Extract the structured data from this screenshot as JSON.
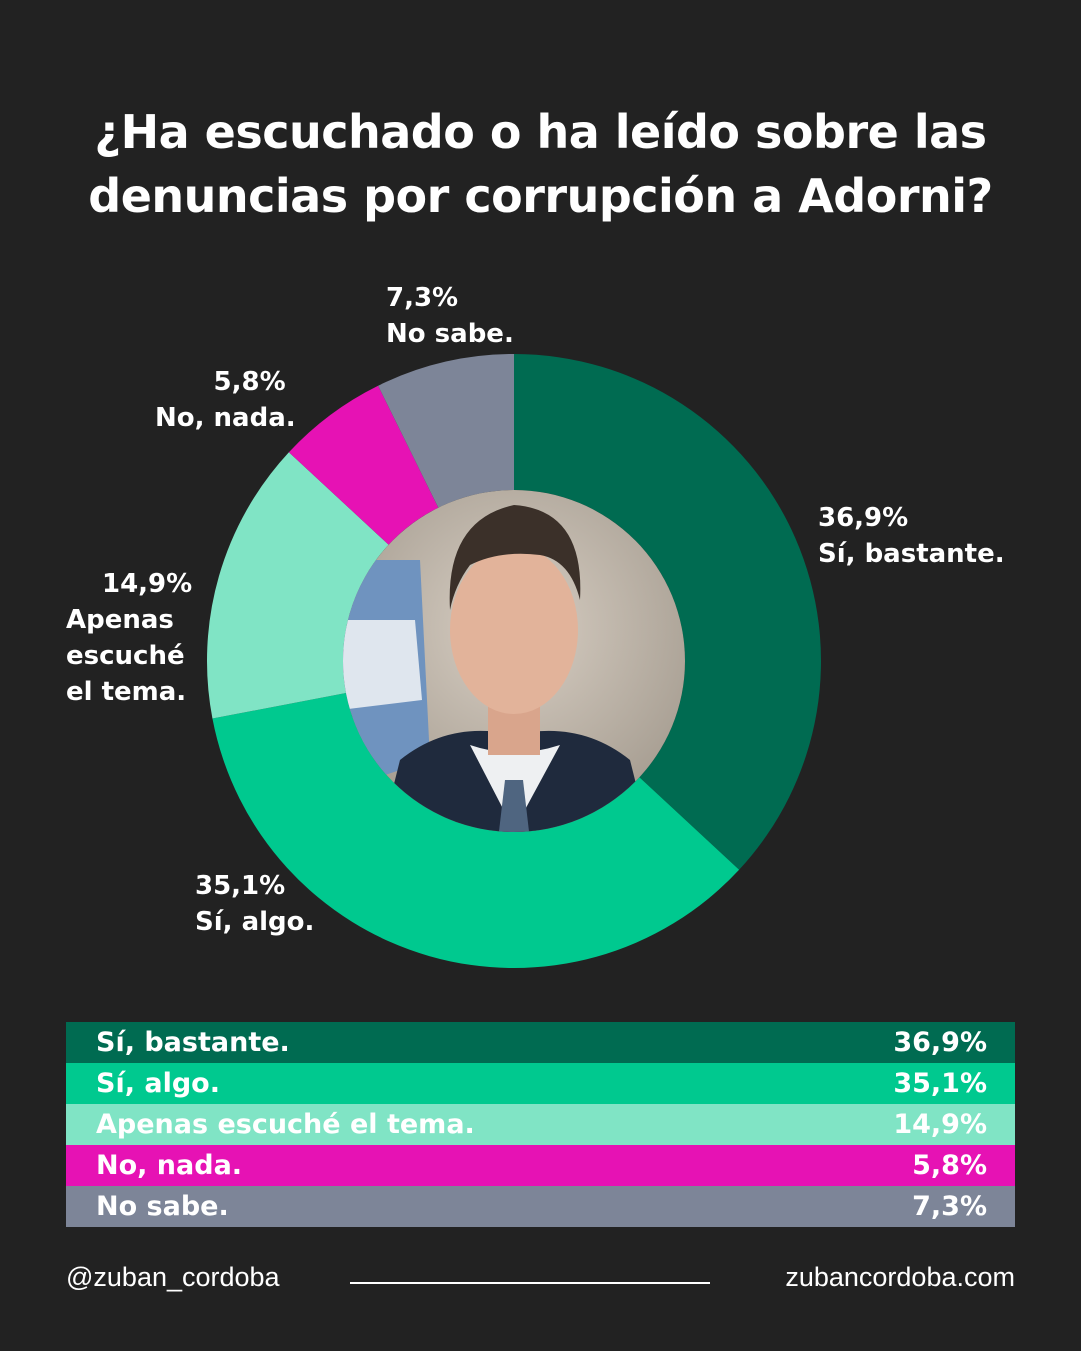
{
  "title": {
    "line1": "¿Ha escuchado o ha leído sobre las",
    "line2": "denuncias por corrupción a Adorni?"
  },
  "chart_data": {
    "type": "pie",
    "variant": "donut",
    "title": "¿Ha escuchado o ha leído sobre las denuncias por corrupción a Adorni?",
    "slices": [
      {
        "label": "Sí, bastante.",
        "value": 36.9,
        "display": "36,9%",
        "color": "#006b51"
      },
      {
        "label": "Sí, algo.",
        "value": 35.1,
        "display": "35,1%",
        "color": "#00c98f"
      },
      {
        "label": "Apenas escuché el tema.",
        "value": 14.9,
        "display": "14,9%",
        "color": "#80e4c5"
      },
      {
        "label": "No, nada.",
        "value": 5.8,
        "display": "5,8%",
        "color": "#e612b4"
      },
      {
        "label": "No sabe.",
        "value": 7.3,
        "display": "7,3%",
        "color": "#7d8598"
      }
    ],
    "slice_labels": {
      "si_bastante": {
        "value": "36,9%",
        "label": "Sí, bastante."
      },
      "si_algo": {
        "value": "35,1%",
        "label": "Sí, algo."
      },
      "apenas": {
        "value": "14,9%",
        "lines": [
          "Apenas",
          "escuché",
          "el tema."
        ]
      },
      "no_nada": {
        "value": "5,8%",
        "label": "No, nada."
      },
      "no_sabe": {
        "value": "7,3%",
        "label": "No sabe."
      }
    }
  },
  "legend": {
    "rows": [
      {
        "label": "Sí, bastante.",
        "value": "36,9%",
        "color": "#006b51"
      },
      {
        "label": "Sí, algo.",
        "value": "35,1%",
        "color": "#00c98f"
      },
      {
        "label": "Apenas escuché el tema.",
        "value": "14,9%",
        "color": "#80e4c5"
      },
      {
        "label": "No, nada.",
        "value": "5,8%",
        "color": "#e612b4"
      },
      {
        "label": "No sabe.",
        "value": "7,3%",
        "color": "#7d8598"
      }
    ]
  },
  "footer": {
    "handle": "@zuban_cordoba",
    "website": "zubancordoba.com"
  },
  "colors": {
    "background": "#222222",
    "text": "#ffffff"
  }
}
